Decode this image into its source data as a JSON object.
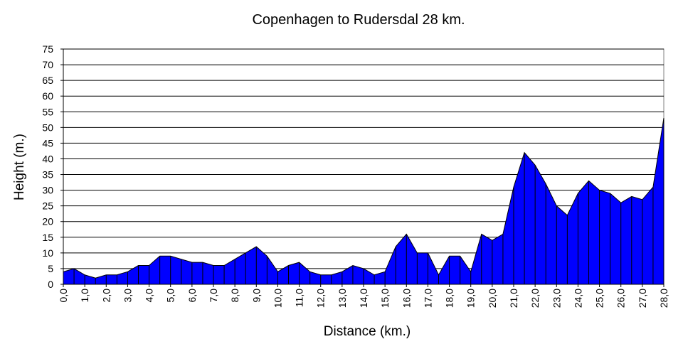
{
  "chart_data": {
    "type": "area",
    "title": "Copenhagen to Rudersdal 28 km.",
    "xlabel": "Distance (km.)",
    "ylabel": "Height (m.)",
    "xlim": [
      0,
      28
    ],
    "ylim": [
      0,
      75
    ],
    "y_ticks": [
      "0",
      "5",
      "10",
      "15",
      "20",
      "25",
      "30",
      "35",
      "40",
      "45",
      "50",
      "55",
      "60",
      "65",
      "70",
      "75"
    ],
    "x_ticks": [
      "0,0",
      "1,0",
      "2,0",
      "3,0",
      "4,0",
      "5,0",
      "6,0",
      "7,0",
      "8,0",
      "9,0",
      "10,0",
      "11,0",
      "12,0",
      "13,0",
      "14,0",
      "15,0",
      "16,0",
      "17,0",
      "18,0",
      "19,0",
      "20,0",
      "21,0",
      "22,0",
      "23,0",
      "24,0",
      "25,0",
      "26,0",
      "27,0",
      "28,0"
    ],
    "grid": true,
    "fill_color": "#0000ff",
    "series": [
      {
        "name": "Height",
        "x": [
          0,
          0.5,
          1,
          1.5,
          2,
          2.5,
          3,
          3.5,
          4,
          4.5,
          5,
          5.5,
          6,
          6.5,
          7,
          7.5,
          8,
          8.5,
          9,
          9.5,
          10,
          10.5,
          11,
          11.5,
          12,
          12.5,
          13,
          13.5,
          14,
          14.5,
          15,
          15.5,
          16,
          16.5,
          17,
          17.5,
          18,
          18.5,
          19,
          19.5,
          20,
          20.5,
          21,
          21.5,
          22,
          22.5,
          23,
          23.5,
          24,
          24.5,
          25,
          25.5,
          26,
          26.5,
          27,
          27.5,
          28
        ],
        "values": [
          4,
          5,
          3,
          2,
          3,
          3,
          4,
          6,
          6,
          9,
          9,
          8,
          7,
          7,
          6,
          6,
          8,
          10,
          12,
          9,
          4,
          6,
          7,
          4,
          3,
          3,
          4,
          6,
          5,
          3,
          4,
          12,
          16,
          10,
          10,
          3,
          9,
          9,
          4,
          16,
          14,
          16,
          31,
          42,
          38,
          32,
          25,
          22,
          29,
          33,
          30,
          29,
          26,
          28,
          27,
          31,
          53
        ]
      }
    ]
  }
}
